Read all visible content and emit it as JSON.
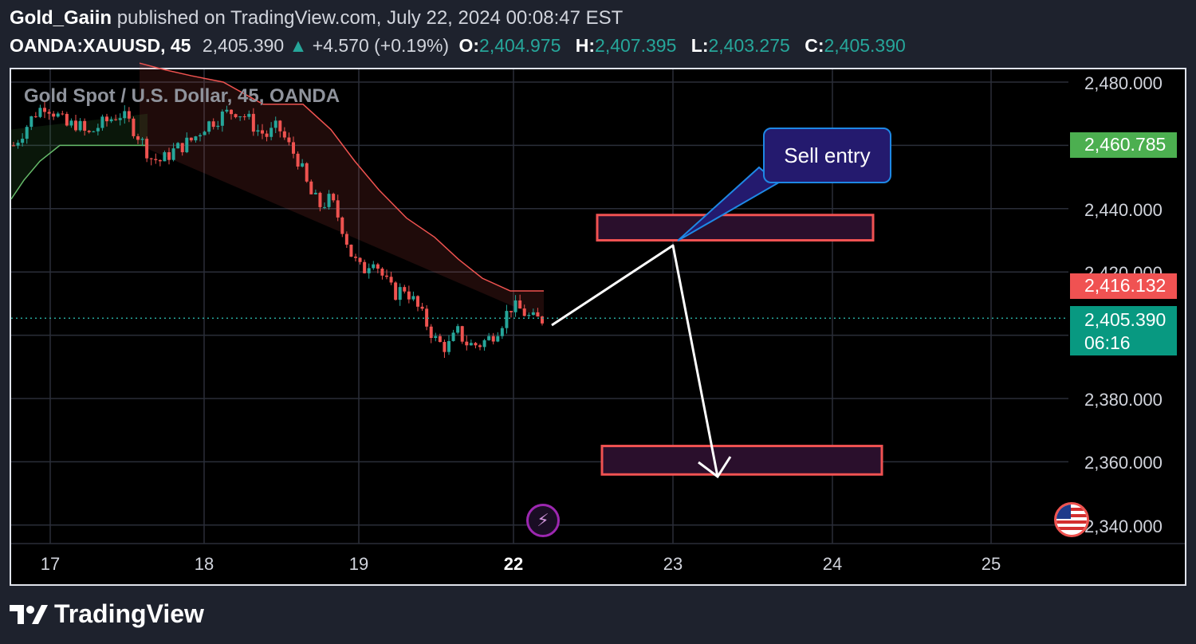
{
  "header": {
    "author": "Gold_Gaiin",
    "published_text": "published on TradingView.com, July 22, 2024 00:08:47 EST",
    "symbol": "OANDA:XAUUSD, 45",
    "last_price": "2,405.390",
    "change": "+4.570 (+0.19%)",
    "o_label": "O:",
    "o_value": "2,404.975",
    "h_label": "H:",
    "h_value": "2,407.395",
    "l_label": "L:",
    "l_value": "2,403.275",
    "c_label": "C:",
    "c_value": "2,405.390"
  },
  "legend": "Gold Spot / U.S. Dollar, 45, OANDA",
  "price_labels": {
    "green_level": "2,460.785",
    "red_level": "2,416.132",
    "current_price": "2,405.390",
    "countdown": "06:16"
  },
  "annotation": {
    "text": "Sell entry"
  },
  "footer": {
    "brand": "TradingView"
  },
  "colors": {
    "up": "#26a69a",
    "down": "#ef5350",
    "grid": "#2a2e39",
    "green_box": "#4caf50",
    "red_box": "#f05252",
    "current_box": "#089981"
  },
  "icons": [
    "tradingview-logo-icon",
    "lightning-icon",
    "us-flag-icon",
    "triangle-up-icon"
  ],
  "chart_data": {
    "type": "candlestick",
    "title": "Gold Spot / U.S. Dollar, 45, OANDA",
    "y_axis": {
      "range": [
        2335,
        2485
      ],
      "ticks": [
        "2,480.000",
        "2,460.000",
        "2,440.000",
        "2,420.000",
        "2,380.000",
        "2,360.000",
        "2,340.000"
      ],
      "tick_values": [
        2480,
        2460,
        2440,
        2420,
        2380,
        2360,
        2340
      ]
    },
    "x_axis": {
      "ticks": [
        "17",
        "18",
        "19",
        "22",
        "23",
        "24",
        "25"
      ],
      "bold_tick": "22"
    },
    "close_path": [
      2460,
      2465,
      2470,
      2473,
      2470,
      2466,
      2467,
      2463,
      2466,
      2468,
      2470,
      2467,
      2462,
      2456,
      2455,
      2458,
      2460,
      2462,
      2466,
      2468,
      2470,
      2471,
      2469,
      2465,
      2463,
      2466,
      2460,
      2455,
      2445,
      2441,
      2443,
      2435,
      2425,
      2420,
      2425,
      2418,
      2413,
      2415,
      2410,
      2404,
      2398,
      2396,
      2401,
      2397,
      2397,
      2399,
      2403,
      2409,
      2408,
      2405,
      2405
    ],
    "series": [
      {
        "name": "Upper band",
        "values": [
          2486,
          2484,
          2482,
          2480,
          2473,
          2473,
          2465,
          2455,
          2446,
          2437,
          2431,
          2424,
          2418,
          2414,
          2414
        ]
      },
      {
        "name": "Lower band",
        "values": [
          2443,
          2449,
          2455,
          2460,
          2460,
          2460,
          2460,
          2460
        ]
      }
    ],
    "annotations": [
      {
        "label": "Sell entry",
        "type": "rectangle",
        "y_range": [
          2430,
          2438
        ]
      },
      {
        "type": "rectangle",
        "y_range": [
          2356,
          2365
        ]
      },
      {
        "type": "arrow",
        "path": [
          2406,
          2430,
          2356
        ]
      }
    ],
    "horizontal_line": 2405.39
  }
}
